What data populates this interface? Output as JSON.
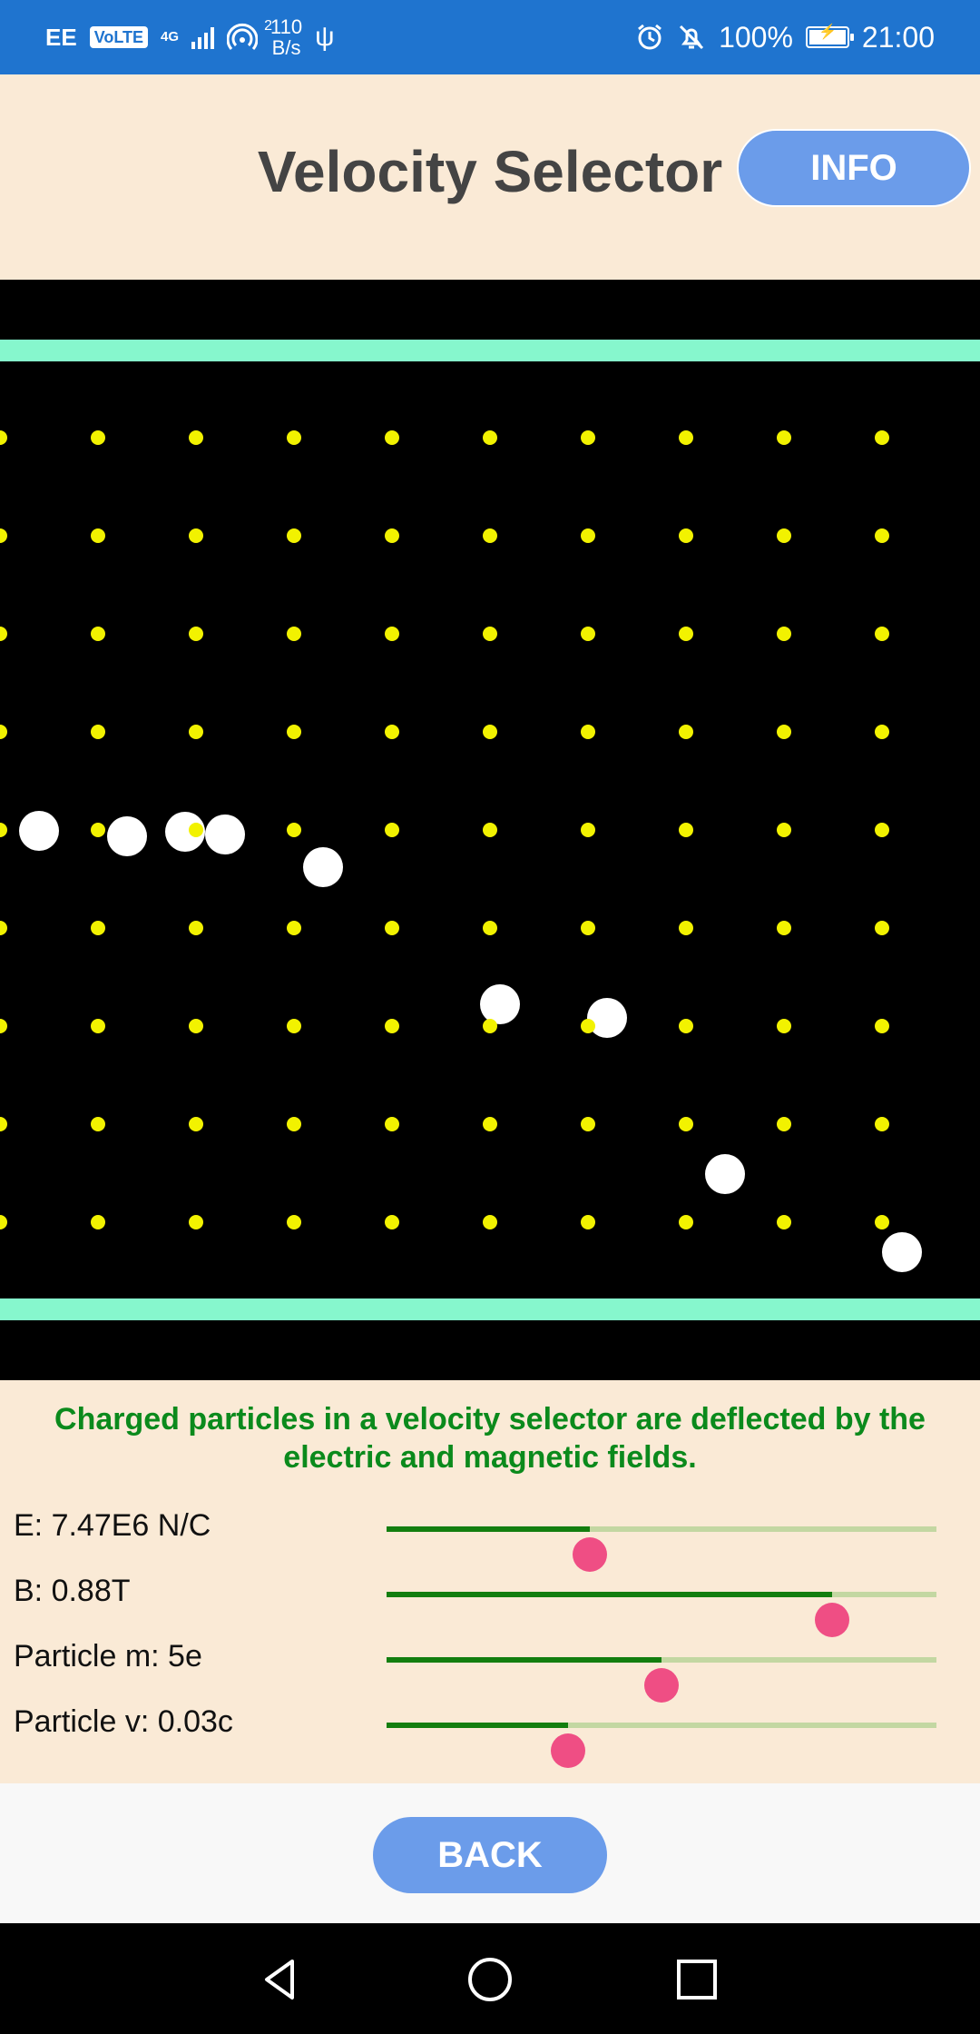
{
  "status_bar": {
    "carrier": "EE",
    "volte": "VoLTE",
    "network_type": "4G",
    "hotspot_count": "2",
    "speed_value": "110",
    "speed_unit": "B/s",
    "battery": "100%",
    "time": "21:00",
    "icons": [
      "signal-icon",
      "hotspot-icon",
      "usb-icon",
      "alarm-icon",
      "muted-bell-icon",
      "battery-charging-icon"
    ]
  },
  "header": {
    "title": "Velocity Selector",
    "info_label": "INFO"
  },
  "simulation": {
    "field": "magnetic field dots",
    "particles": 9
  },
  "controls": {
    "description": "Charged particles in a velocity selector are deflected by the electric and magnetic fields.",
    "sliders": [
      {
        "label": "E: 7.47E6 N/C",
        "position": 0.37
      },
      {
        "label": "B: 0.88T",
        "position": 0.81
      },
      {
        "label": "Particle m: 5e",
        "position": 0.5
      },
      {
        "label": "Particle v: 0.03c",
        "position": 0.33
      }
    ]
  },
  "footer": {
    "back_label": "BACK"
  },
  "nav": {
    "icons": [
      "back-triangle-icon",
      "home-circle-icon",
      "recents-square-icon"
    ]
  },
  "colors": {
    "status_bar": "#1f74cf",
    "panel": "#faead6",
    "accent_button": "#6b9cea",
    "plate": "#86f7cd",
    "field_dot": "#f2f200",
    "description_text": "#0b8a1c",
    "slider_fill": "#137e0f",
    "slider_track": "#c3d7a2",
    "slider_thumb": "#ef4e84"
  }
}
